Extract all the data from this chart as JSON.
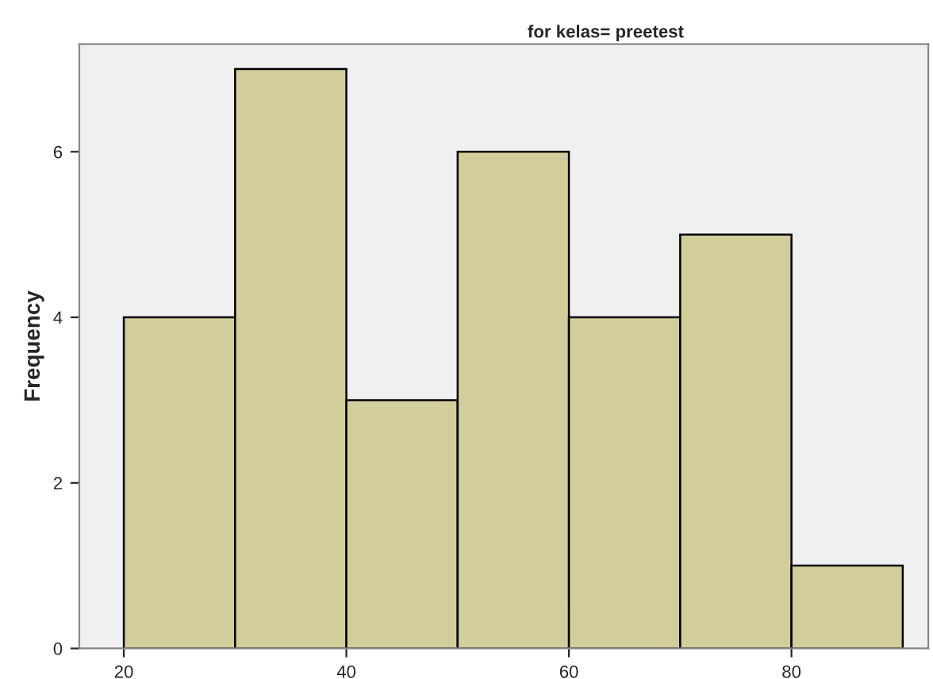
{
  "chart_data": {
    "type": "histogram",
    "title": "for kelas= preetest",
    "ylabel": "Frequency",
    "bins": [
      20,
      30,
      40,
      50,
      60,
      70,
      80,
      90
    ],
    "values": [
      4,
      7,
      3,
      6,
      4,
      5,
      1
    ],
    "color": "#d3ce99",
    "xlim": [
      16,
      92.3
    ],
    "xticks": [
      20,
      40,
      60,
      80
    ],
    "ylim": [
      0,
      7.3
    ],
    "yticks": [
      0,
      2,
      4,
      6
    ],
    "grid": false
  }
}
